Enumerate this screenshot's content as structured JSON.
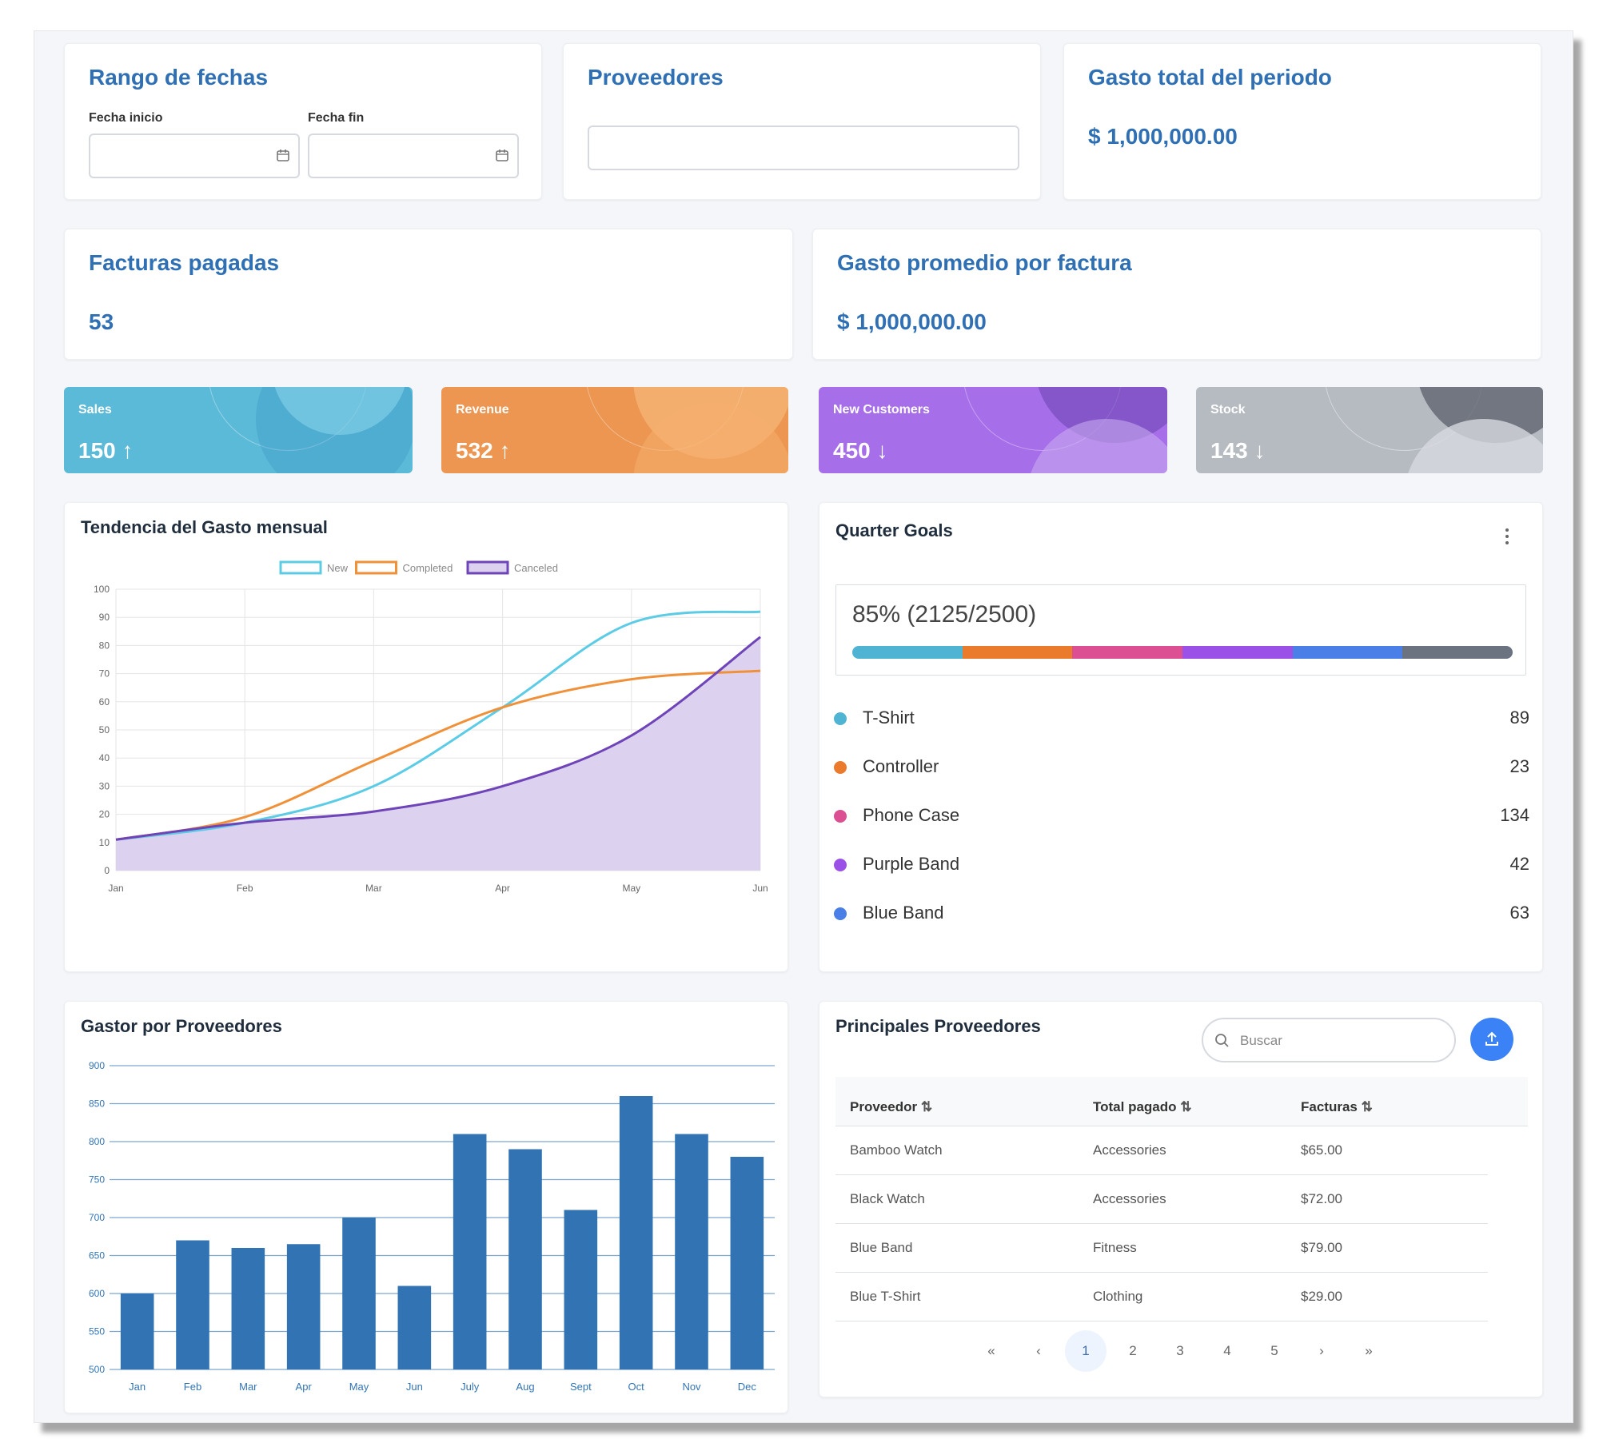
{
  "filters": {
    "date_range": {
      "title": "Rango de fechas",
      "start_label": "Fecha inicio",
      "end_label": "Fecha fin",
      "start_value": "",
      "end_value": ""
    },
    "suppliers": {
      "title": "Proveedores",
      "value": ""
    },
    "total_spend": {
      "title": "Gasto total del periodo",
      "value": "$ 1,000,000.00"
    }
  },
  "summary": {
    "paid_invoices": {
      "title": "Facturas pagadas",
      "value": "53"
    },
    "avg_spend": {
      "title": "Gasto promedio por factura",
      "value": "$ 1,000,000.00"
    }
  },
  "kpis": [
    {
      "label": "Sales",
      "value": "150",
      "trend": "↑",
      "color": "#5bbad8"
    },
    {
      "label": "Revenue",
      "value": "532",
      "trend": "↑",
      "color": "#ec9651"
    },
    {
      "label": "New Customers",
      "value": "450",
      "trend": "↓",
      "color": "#a66ee9"
    },
    {
      "label": "Stock",
      "value": "143",
      "trend": "↓",
      "color": "#b6bbc2"
    }
  ],
  "trend_chart": {
    "title": "Tendencia del Gasto mensual",
    "chart_data": {
      "type": "line",
      "x": [
        "Jan",
        "Feb",
        "Mar",
        "Apr",
        "May",
        "Jun"
      ],
      "ylim": [
        0,
        100
      ],
      "yticks": [
        0,
        10,
        20,
        30,
        40,
        50,
        60,
        70,
        80,
        90,
        100
      ],
      "legend_position": "top",
      "grid": true,
      "series": [
        {
          "name": "New",
          "values": [
            11,
            17,
            30,
            58,
            88,
            92
          ],
          "color": "#5ccce6",
          "fill": false
        },
        {
          "name": "Completed",
          "values": [
            11,
            19,
            39,
            58,
            68,
            71
          ],
          "color": "#f0913a",
          "fill": false
        },
        {
          "name": "Canceled",
          "values": [
            11,
            17,
            21,
            30,
            48,
            83
          ],
          "color": "#6e44b8",
          "fill": true,
          "fill_color": "#dcd1ef"
        }
      ]
    }
  },
  "goals": {
    "title": "Quarter Goals",
    "menu_icon": "vertical-dots-icon",
    "progress_text": "85% (2125/2500)",
    "progress_percent": 85,
    "bar_colors": [
      "#4fb3d4",
      "#ea7b2d",
      "#dc4f92",
      "#9b51e8",
      "#4a7fe8",
      "#6b7280"
    ],
    "items": [
      {
        "name": "T-Shirt",
        "count": "89",
        "color": "#4fb3d4"
      },
      {
        "name": "Controller",
        "count": "23",
        "color": "#ea7b2d"
      },
      {
        "name": "Phone Case",
        "count": "134",
        "color": "#dc4f92"
      },
      {
        "name": "Purple Band",
        "count": "42",
        "color": "#9b51e8"
      },
      {
        "name": "Blue Band",
        "count": "63",
        "color": "#4a7fe8"
      }
    ]
  },
  "bar_chart": {
    "title": "Gastor por Proveedores",
    "chart_data": {
      "type": "bar",
      "categories": [
        "Jan",
        "Feb",
        "Mar",
        "Apr",
        "May",
        "Jun",
        "July",
        "Aug",
        "Sept",
        "Oct",
        "Nov",
        "Dec"
      ],
      "values": [
        600,
        670,
        660,
        665,
        700,
        610,
        810,
        790,
        710,
        860,
        810,
        780
      ],
      "ylim": [
        500,
        900
      ],
      "yticks": [
        500,
        550,
        600,
        650,
        700,
        750,
        800,
        850,
        900
      ],
      "grid": true,
      "color": "#3274b3"
    }
  },
  "table": {
    "title": "Principales Proveedores",
    "search_placeholder": "Buscar",
    "upload_icon": "upload-icon",
    "columns": [
      "Proveedor",
      "Total pagado",
      "Facturas"
    ],
    "rows": [
      [
        "Bamboo Watch",
        "Accessories",
        "$65.00"
      ],
      [
        "Black Watch",
        "Accessories",
        "$72.00"
      ],
      [
        "Blue Band",
        "Fitness",
        "$79.00"
      ],
      [
        "Blue T-Shirt",
        "Clothing",
        "$29.00"
      ]
    ],
    "pagination": {
      "first": "«",
      "prev": "‹",
      "pages": [
        "1",
        "2",
        "3",
        "4",
        "5"
      ],
      "current": "1",
      "next": "›",
      "last": "»"
    }
  }
}
